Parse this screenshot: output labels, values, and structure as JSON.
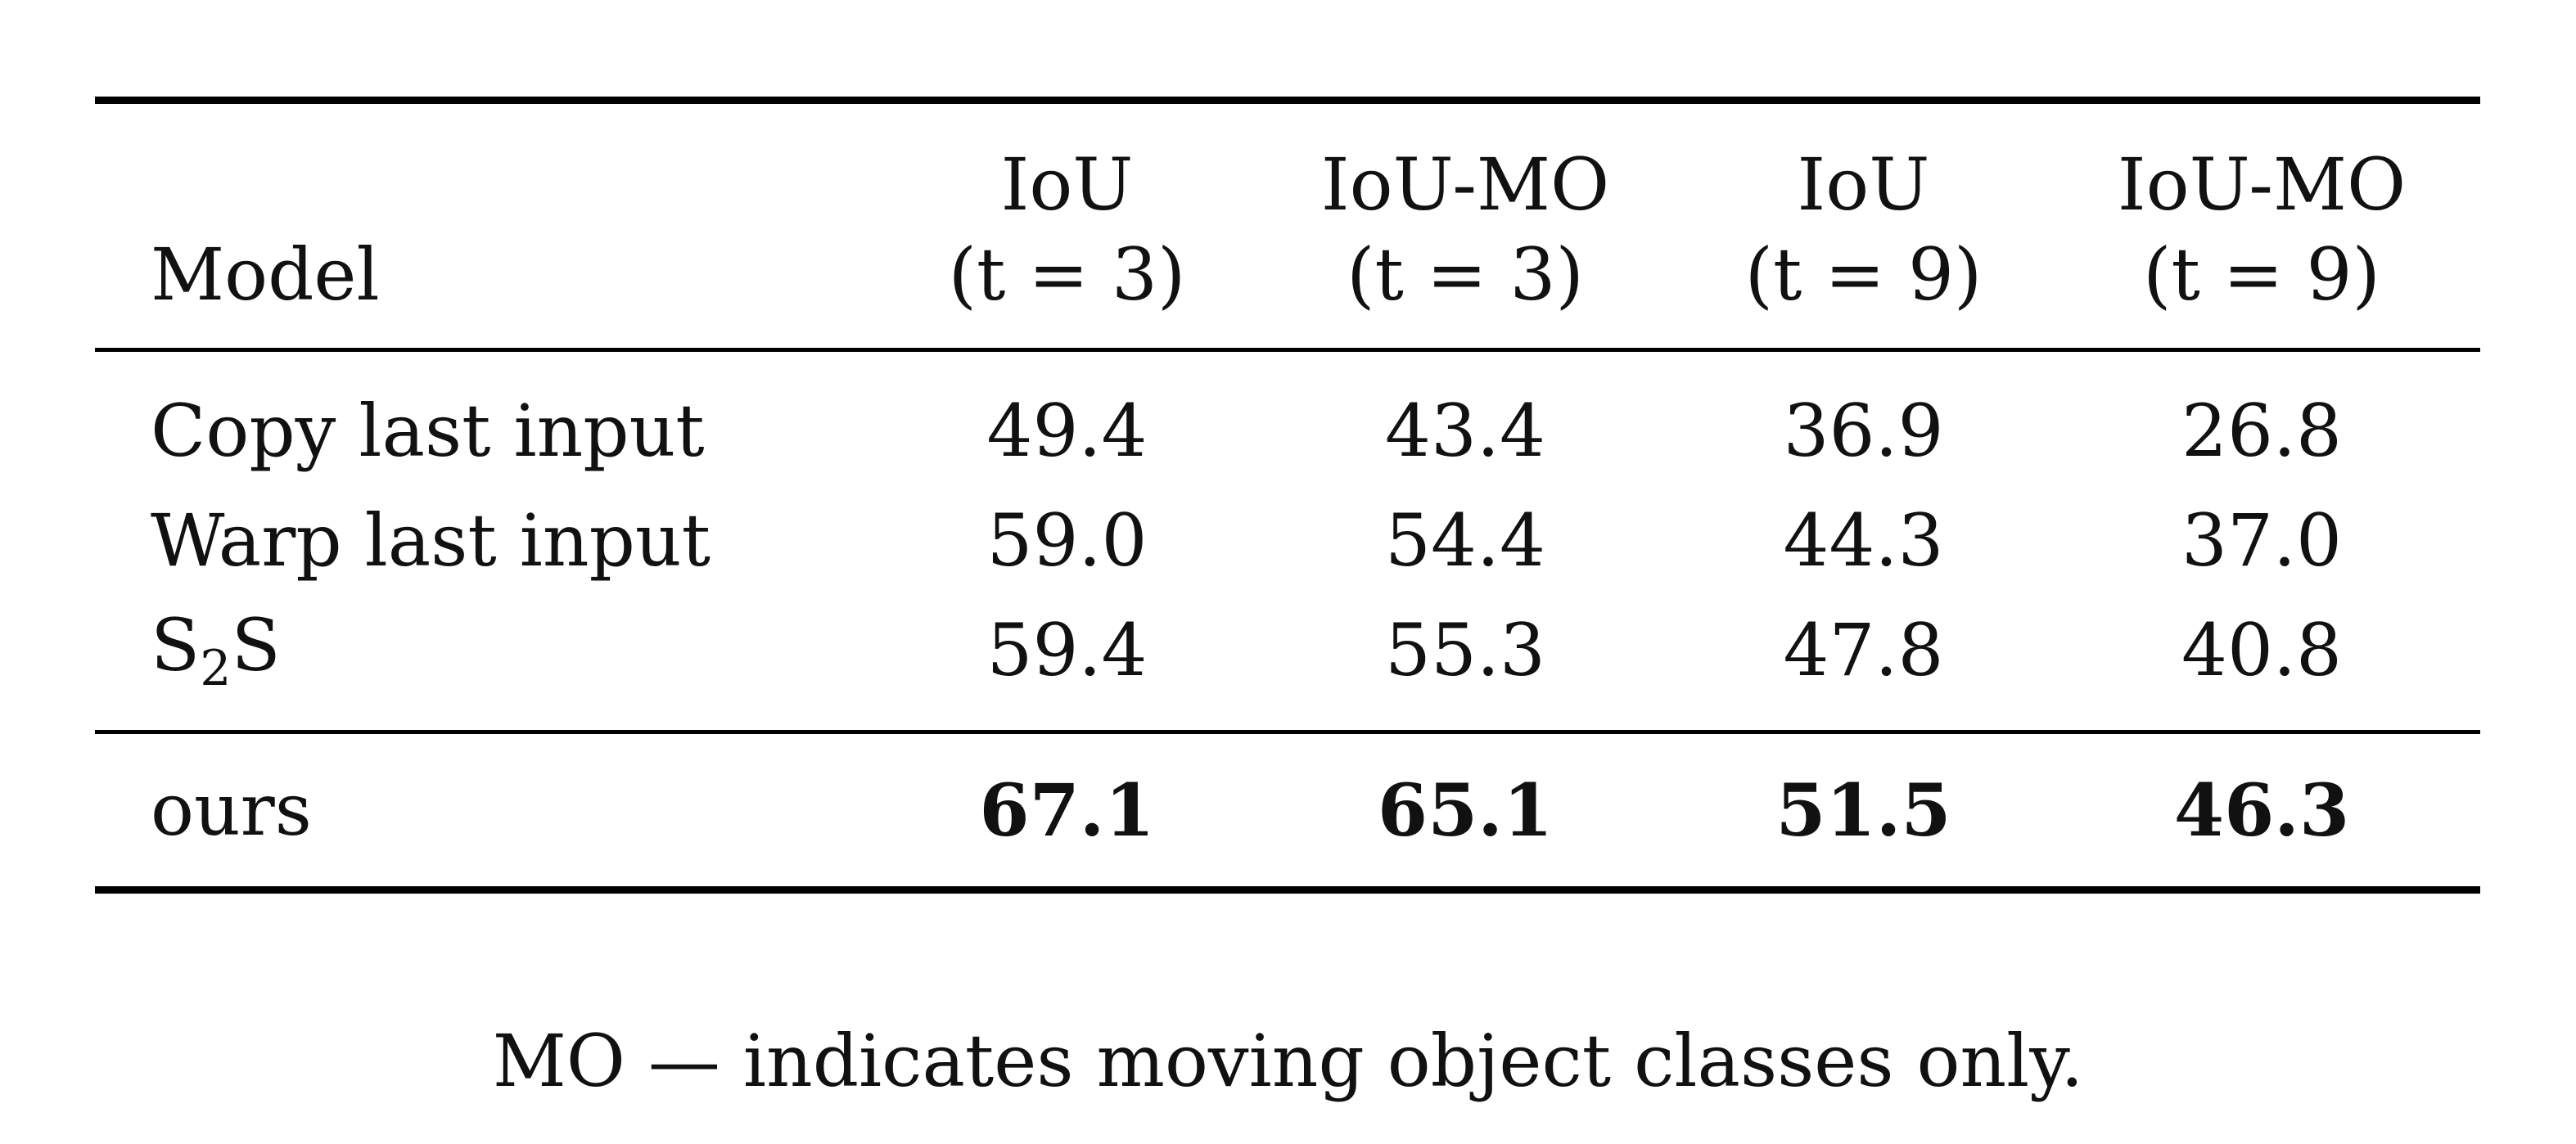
{
  "table": {
    "header": {
      "model_label": "Model",
      "columns": [
        {
          "line1": "IoU",
          "line2": "(t = 3)"
        },
        {
          "line1": "IoU-MO",
          "line2": "(t = 3)"
        },
        {
          "line1": "IoU",
          "line2": "(t = 9)"
        },
        {
          "line1": "IoU-MO",
          "line2": "(t = 9)"
        }
      ]
    },
    "baseline_rows": [
      {
        "model": "Copy last input",
        "values": [
          "49.4",
          "43.4",
          "36.9",
          "26.8"
        ]
      },
      {
        "model": "Warp last input",
        "values": [
          "59.0",
          "54.4",
          "44.3",
          "37.0"
        ]
      },
      {
        "model_main": "S",
        "model_sub": "2",
        "model_tail": "S",
        "values": [
          "59.4",
          "55.3",
          "47.8",
          "40.8"
        ]
      }
    ],
    "ours_row": {
      "model": "ours",
      "values": [
        "67.1",
        "65.1",
        "51.5",
        "46.3"
      ]
    }
  },
  "caption": "MO — indicates moving object classes only."
}
